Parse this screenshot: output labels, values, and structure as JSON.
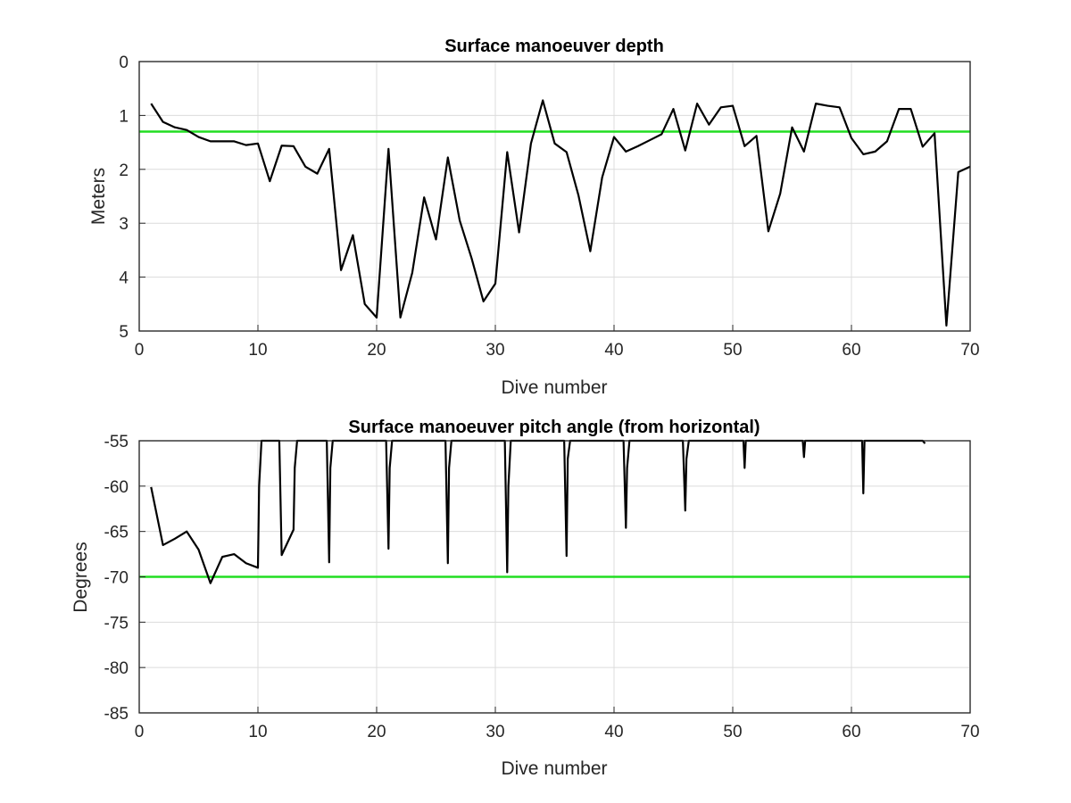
{
  "chart_data": [
    {
      "type": "line",
      "title": "Surface manoeuver depth",
      "xlabel": "Dive number",
      "ylabel": "Meters",
      "xlim": [
        0,
        70
      ],
      "ylim": [
        0,
        5
      ],
      "y_reversed": true,
      "grid": true,
      "xticks": [
        0,
        10,
        20,
        30,
        40,
        50,
        60,
        70
      ],
      "yticks": [
        0,
        1,
        2,
        3,
        4,
        5
      ],
      "reference_line": {
        "y": 1.3,
        "color": "#22dd22"
      },
      "series": [
        {
          "color": "#000000",
          "x": [
            1,
            2,
            3,
            4,
            5,
            6,
            7,
            8,
            9,
            10,
            11,
            12,
            13,
            14,
            15,
            16,
            17,
            18,
            19,
            20,
            21,
            22,
            23,
            24,
            25,
            26,
            27,
            28,
            29,
            30,
            31,
            32,
            33,
            34,
            35,
            36,
            37,
            38,
            39,
            40,
            41,
            42,
            43,
            44,
            45,
            46,
            47,
            48,
            49,
            50,
            51,
            52,
            53,
            54,
            55,
            56,
            57,
            58,
            59,
            60,
            61,
            62,
            63,
            64,
            65,
            66,
            67,
            68,
            69,
            70
          ],
          "y": [
            0.78,
            1.12,
            1.22,
            1.27,
            1.4,
            1.48,
            1.48,
            1.48,
            1.55,
            1.52,
            2.22,
            1.56,
            1.57,
            1.95,
            2.08,
            1.62,
            3.87,
            3.22,
            4.5,
            4.75,
            1.62,
            4.75,
            3.92,
            2.52,
            3.3,
            1.78,
            2.95,
            3.65,
            4.45,
            4.12,
            1.68,
            3.17,
            1.52,
            0.72,
            1.52,
            1.68,
            2.48,
            3.52,
            2.15,
            1.4,
            1.67,
            1.57,
            1.46,
            1.35,
            0.88,
            1.65,
            0.78,
            1.17,
            0.85,
            0.82,
            1.57,
            1.38,
            3.15,
            2.45,
            1.22,
            1.67,
            0.78,
            0.82,
            0.85,
            1.42,
            1.72,
            1.67,
            1.48,
            0.88,
            0.88,
            1.58,
            1.33,
            4.9,
            2.05,
            1.95
          ]
        }
      ]
    },
    {
      "type": "line",
      "title": "Surface manoeuver pitch angle (from horizontal)",
      "xlabel": "Dive number",
      "ylabel": "Degrees",
      "xlim": [
        0,
        70
      ],
      "ylim": [
        -85,
        -55
      ],
      "grid": true,
      "xticks": [
        0,
        10,
        20,
        30,
        40,
        50,
        60,
        70
      ],
      "yticks": [
        -55,
        -60,
        -65,
        -70,
        -75,
        -80,
        -85
      ],
      "reference_line": {
        "y": -70,
        "color": "#22dd22"
      },
      "series": [
        {
          "color": "#000000",
          "x": [
            1,
            2,
            3,
            4,
            5,
            6,
            7,
            8,
            9,
            10,
            10.1,
            10.3,
            11.8,
            12,
            13,
            13.1,
            13.3,
            15.8,
            16,
            16.1,
            16.3,
            20.8,
            21,
            21.1,
            21.3,
            25.8,
            26,
            26.1,
            26.3,
            30.8,
            31,
            31.1,
            31.3,
            35.8,
            36,
            36.1,
            36.3,
            40.8,
            41,
            41.1,
            41.3,
            45.8,
            46,
            46.1,
            46.3,
            50.9,
            51,
            51.1,
            55.9,
            56,
            56.1,
            60.9,
            61,
            61.1,
            66,
            66.2
          ],
          "y": [
            -60.1,
            -66.5,
            -65.8,
            -65,
            -67,
            -70.7,
            -67.8,
            -67.5,
            -68.5,
            -69,
            -60,
            -55,
            -55,
            -67.6,
            -64.8,
            -58,
            -55,
            -55,
            -68.4,
            -58,
            -55,
            -55,
            -66.9,
            -58,
            -55,
            -55,
            -68.5,
            -58,
            -55,
            -55,
            -69.5,
            -60,
            -55,
            -55,
            -67.7,
            -57,
            -55,
            -55,
            -64.6,
            -58,
            -55,
            -55,
            -62.7,
            -57,
            -55,
            -55,
            -58,
            -55,
            -55,
            -56.8,
            -55,
            -55,
            -60.8,
            -55,
            -55,
            -55.3
          ]
        }
      ]
    }
  ]
}
